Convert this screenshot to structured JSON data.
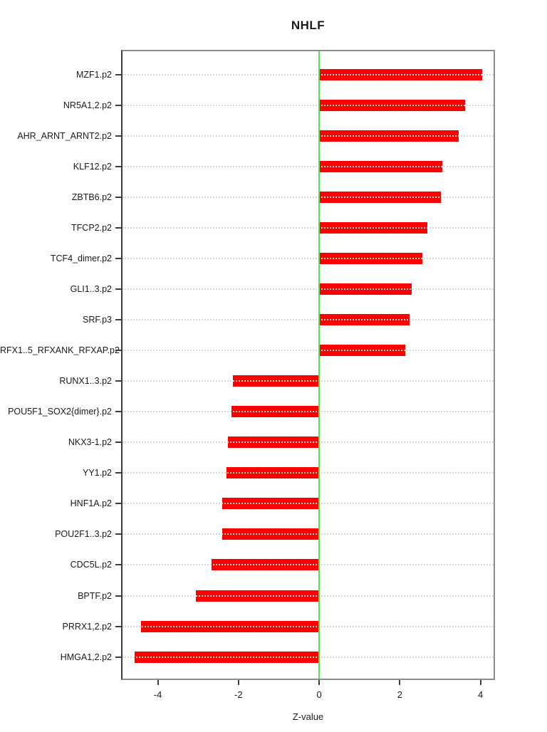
{
  "title": "NHLF",
  "chart_data": {
    "type": "bar",
    "orientation": "horizontal",
    "title": "NHLF",
    "xlabel": "Z-value",
    "ylabel": "",
    "categories": [
      "MZF1.p2",
      "NR5A1,2.p2",
      "AHR_ARNT_ARNT2.p2",
      "KLF12.p2",
      "ZBTB6.p2",
      "TFCP2.p2",
      "TCF4_dimer.p2",
      "GLI1..3.p2",
      "SRF.p3",
      "RFX1..5_RFXANK_RFXAP.p2",
      "RUNX1..3.p2",
      "POU5F1_SOX2{dimer}.p2",
      "NKX3-1.p2",
      "YY1.p2",
      "HNF1A.p2",
      "POU2F1..3.p2",
      "CDC5L.p2",
      "BPTF.p2",
      "PRRX1,2.p2",
      "HMGA1,2.p2"
    ],
    "values": [
      4.04,
      3.61,
      3.46,
      3.05,
      3.02,
      2.68,
      2.56,
      2.29,
      2.25,
      2.14,
      -2.13,
      -2.17,
      -2.27,
      -2.29,
      -2.4,
      -2.41,
      -2.66,
      -3.06,
      -4.42,
      -4.58
    ],
    "xlim": [
      -4.91,
      4.36
    ],
    "x_ticks": [
      -4,
      -2,
      0,
      2,
      4
    ],
    "x_tick_labels": [
      "-4",
      "-2",
      "0",
      "2",
      "4"
    ],
    "grid": "horizontal dotted line per category",
    "legend": "none",
    "zero_reference_line": 0,
    "colors": {
      "bar": "#ff0000",
      "zero_line": "#4fe64f",
      "grid": "#dadada",
      "frame": "#8c8c8c",
      "axis": "#3d3d3d",
      "text": "#1a1a1a"
    }
  }
}
